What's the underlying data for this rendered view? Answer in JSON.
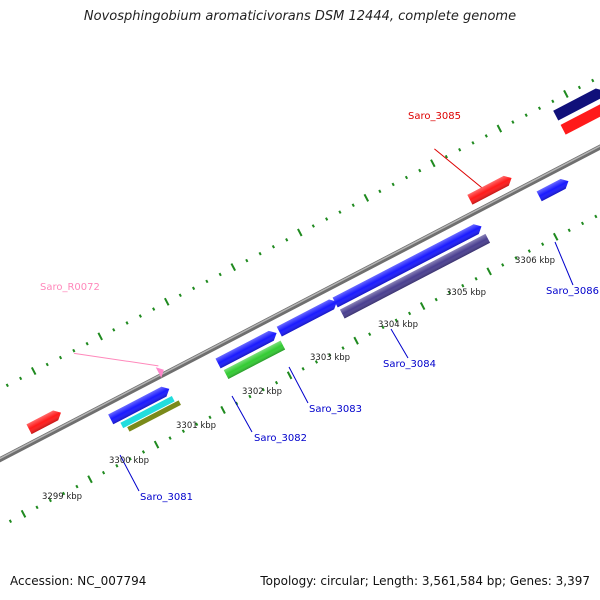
{
  "title": "Novosphingobium aromaticivorans DSM 12444, complete genome",
  "footer": {
    "accession": "Accession: NC_007794",
    "topology": "Topology: circular; Length: 3,561,584 bp; Genes: 3,397"
  },
  "colors": {
    "backbone": "#8c8c8c",
    "tick": "#1f8a1f",
    "gene_red": "#ff1a1a",
    "gene_blue": "#1a1aff",
    "gene_navy": "#10107a",
    "gene_green": "#33cc33",
    "gene_cyan": "#22dddd",
    "gene_olive": "#7a8a1a",
    "gene_slate": "#4a3f90",
    "rna_pink": "#ff88cc",
    "label_red": "#dd0000",
    "label_blue": "#0000cc",
    "label_pink": "#ff88bb"
  },
  "kbp_ticks": [
    "3299 kbp",
    "3300 kbp",
    "3301 kbp",
    "3302 kbp",
    "3303 kbp",
    "3304 kbp",
    "3305 kbp",
    "3306 kbp"
  ],
  "gene_labels": [
    {
      "text": "Saro_3085",
      "color": "label_red"
    },
    {
      "text": "Saro_R0072",
      "color": "label_pink"
    },
    {
      "text": "Saro_3086",
      "color": "label_blue"
    },
    {
      "text": "Saro_3084",
      "color": "label_blue"
    },
    {
      "text": "Saro_3083",
      "color": "label_blue"
    },
    {
      "text": "Saro_3082",
      "color": "label_blue"
    },
    {
      "text": "Saro_3081",
      "color": "label_blue"
    }
  ]
}
